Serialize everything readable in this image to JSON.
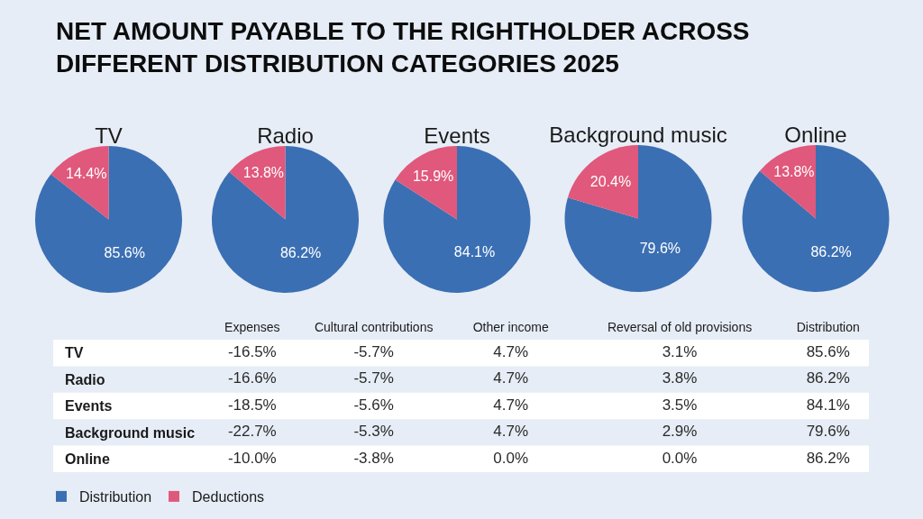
{
  "chart_data": [
    {
      "type": "pie",
      "title": "NET AMOUNT PAYABLE TO THE RIGHTHOLDER ACROSS DIFFERENT DISTRIBUTION CATEGORIES 2025",
      "categories": [
        "Distribution",
        "Deductions"
      ],
      "colors": [
        "#3b6fb3",
        "#e0587b"
      ],
      "legend": "bottom left",
      "series": [
        {
          "name": "TV",
          "values": [
            85.6,
            14.4
          ],
          "value_labels": [
            "85.6%",
            "14.4%"
          ]
        },
        {
          "name": "Radio",
          "values": [
            86.2,
            13.8
          ],
          "value_labels": [
            "86.2%",
            "13.8%"
          ]
        },
        {
          "name": "Events",
          "values": [
            84.1,
            15.9
          ],
          "value_labels": [
            "84.1%",
            "15.9%"
          ]
        },
        {
          "name": "Background music",
          "values": [
            79.6,
            20.4
          ],
          "value_labels": [
            "79.6%",
            "20.4%"
          ]
        },
        {
          "name": "Online",
          "values": [
            86.2,
            13.8
          ],
          "value_labels": [
            "86.2%",
            "13.8%"
          ]
        }
      ]
    },
    {
      "type": "heatmap",
      "categories": [
        "Expenses",
        "Cultural contributions",
        "Other income",
        "Reversal of old provisions",
        "Distribution"
      ],
      "y_categories": [
        "TV",
        "Radio",
        "Events",
        "Background music",
        "Online"
      ],
      "cells": [
        [
          -16.5,
          -5.7,
          4.7,
          3.1,
          85.6
        ],
        [
          -16.6,
          -5.7,
          4.7,
          3.8,
          86.2
        ],
        [
          -18.5,
          -5.6,
          4.7,
          3.5,
          84.1
        ],
        [
          -22.7,
          -5.3,
          4.7,
          2.9,
          79.6
        ],
        [
          -10.0,
          -3.8,
          0.0,
          0.0,
          86.2
        ]
      ],
      "cell_labels": [
        [
          "-16.5%",
          "-5.7%",
          "4.7%",
          "3.1%",
          "85.6%"
        ],
        [
          "-16.6%",
          "-5.7%",
          "4.7%",
          "3.8%",
          "86.2%"
        ],
        [
          "-18.5%",
          "-5.6%",
          "4.7%",
          "3.5%",
          "84.1%"
        ],
        [
          "-22.7%",
          "-5.3%",
          "4.7%",
          "2.9%",
          "79.6%"
        ],
        [
          "-10.0%",
          "-3.8%",
          "0.0%",
          "0.0%",
          "86.2%"
        ]
      ]
    }
  ]
}
